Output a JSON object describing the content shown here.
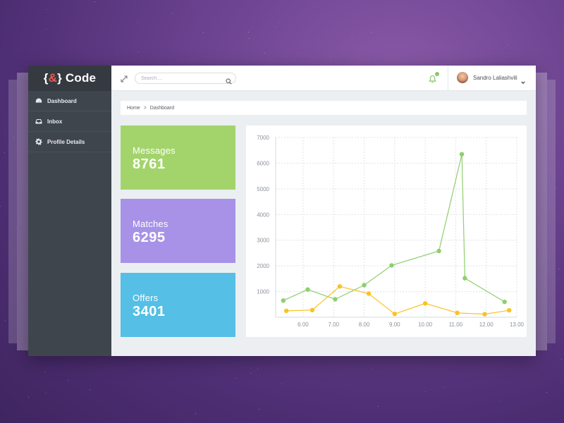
{
  "brand": {
    "open": "{",
    "amp": "&",
    "close": "}",
    "word": "Code"
  },
  "sidebar": {
    "items": [
      {
        "label": "Dashboard",
        "icon": "dashboard-icon"
      },
      {
        "label": "Inbox",
        "icon": "inbox-icon"
      },
      {
        "label": "Profile Details",
        "icon": "gear-icon"
      }
    ]
  },
  "topbar": {
    "search_placeholder": "Search....",
    "user_name": "Sandro Laliashvili"
  },
  "breadcrumb": {
    "home": "Home",
    "separator": ">",
    "current": "Dashboard"
  },
  "cards": [
    {
      "label": "Messages",
      "value": "8761",
      "color": "#a3d46c"
    },
    {
      "label": "Matches",
      "value": "6295",
      "color": "#a792e8"
    },
    {
      "label": "Offers",
      "value": "3401",
      "color": "#55bfe5"
    }
  ],
  "colors": {
    "sidebar": "#3f454d",
    "brand_bg": "#353a41",
    "accent_red": "#ef5a4a",
    "notify_green": "#8dc86a"
  },
  "chart_data": {
    "type": "line",
    "title": "",
    "xlabel": "",
    "ylabel": "",
    "x_ticks": [
      "6.00",
      "7.00",
      "8.00",
      "9.00",
      "10.00",
      "11.00",
      "12.00",
      "13.00"
    ],
    "x_tick_values": [
      6,
      7,
      8,
      9,
      10,
      11,
      12,
      13
    ],
    "y_ticks": [
      1000,
      2000,
      3000,
      4000,
      5000,
      6000,
      7000
    ],
    "xlim": [
      5.1,
      13.0
    ],
    "ylim": [
      0,
      7000
    ],
    "grid": true,
    "series": [
      {
        "name": "green",
        "color": "#8fcf6e",
        "points": [
          [
            5.35,
            650
          ],
          [
            6.15,
            1080
          ],
          [
            7.05,
            700
          ],
          [
            8.0,
            1250
          ],
          [
            8.9,
            2020
          ],
          [
            10.45,
            2580
          ],
          [
            11.2,
            6350
          ],
          [
            11.3,
            1520
          ],
          [
            12.6,
            600
          ]
        ]
      },
      {
        "name": "yellow",
        "color": "#f7c325",
        "points": [
          [
            5.45,
            250
          ],
          [
            6.3,
            280
          ],
          [
            7.2,
            1200
          ],
          [
            8.15,
            920
          ],
          [
            9.0,
            130
          ],
          [
            10.0,
            540
          ],
          [
            11.05,
            170
          ],
          [
            11.95,
            120
          ],
          [
            12.75,
            270
          ]
        ]
      }
    ]
  }
}
